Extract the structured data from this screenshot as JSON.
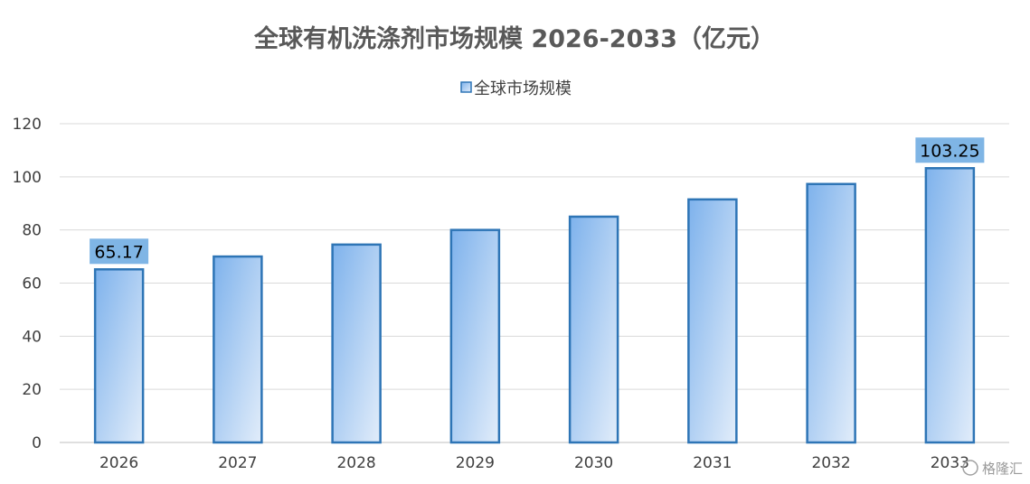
{
  "chart_data": {
    "type": "bar",
    "title": "全球有机洗涤剂市场规模 2026-2033（亿元）",
    "legend": {
      "position": "top",
      "entries": [
        "全球市场规模"
      ]
    },
    "categories": [
      "2026",
      "2027",
      "2028",
      "2029",
      "2030",
      "2031",
      "2032",
      "2033"
    ],
    "series": [
      {
        "name": "全球市场规模",
        "values": [
          65.17,
          70.0,
          74.5,
          80.0,
          85.0,
          91.5,
          97.3,
          103.25
        ]
      }
    ],
    "data_labels": [
      {
        "category": "2026",
        "text": "65.17"
      },
      {
        "category": "2033",
        "text": "103.25"
      }
    ],
    "yticks": [
      "0",
      "20",
      "40",
      "60",
      "80",
      "100",
      "120"
    ],
    "ylim": [
      0,
      120
    ],
    "grid": true,
    "colors": {
      "bar_fill_top": "#7eb2ec",
      "bar_fill_bottom": "#deebf9",
      "bar_border": "#2e75b6",
      "label_bg": "#7fb5e5",
      "grid": "#d9d9d9"
    }
  },
  "watermark": "格隆汇"
}
